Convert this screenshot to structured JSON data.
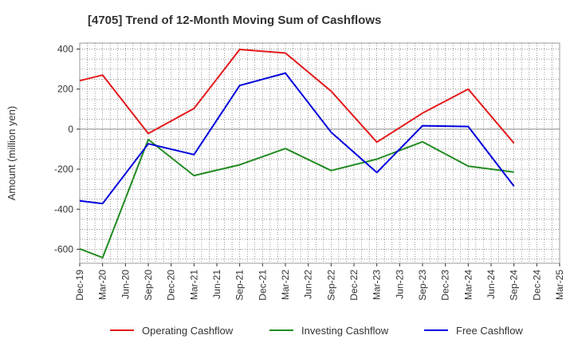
{
  "chart_data": {
    "type": "line",
    "title": "[4705]  Trend of 12-Month Moving Sum of Cashflows",
    "xlabel": "",
    "ylabel": "Amount (million yen)",
    "categories": [
      "Dec-19",
      "Mar-20",
      "Jun-20",
      "Sep-20",
      "Dec-20",
      "Mar-21",
      "Jun-21",
      "Sep-21",
      "Dec-21",
      "Mar-22",
      "Jun-22",
      "Sep-22",
      "Dec-22",
      "Mar-23",
      "Jun-23",
      "Sep-23",
      "Dec-23",
      "Mar-24",
      "Jun-24",
      "Sep-24",
      "Dec-24",
      "Mar-25"
    ],
    "ylim": [
      -670,
      430
    ],
    "yticks": [
      400,
      200,
      0,
      -200,
      -400,
      -600
    ],
    "grid": true,
    "legend_position": "bottom",
    "series": [
      {
        "name": "Operating Cashflow",
        "color": "#e31a1c",
        "points": [
          [
            "Dec-19",
            242
          ],
          [
            "Mar-20",
            270
          ],
          [
            "Sep-20",
            -22
          ],
          [
            "Mar-21",
            103
          ],
          [
            "Sep-21",
            398
          ],
          [
            "Mar-22",
            380
          ],
          [
            "Sep-22",
            190
          ],
          [
            "Mar-23",
            -65
          ],
          [
            "Sep-23",
            80
          ],
          [
            "Mar-24",
            200
          ],
          [
            "Sep-24",
            -70
          ]
        ]
      },
      {
        "name": "Investing Cashflow",
        "color": "#228b22",
        "points": [
          [
            "Dec-19",
            -598
          ],
          [
            "Mar-20",
            -642
          ],
          [
            "Sep-20",
            -52
          ],
          [
            "Mar-21",
            -232
          ],
          [
            "Sep-21",
            -178
          ],
          [
            "Mar-22",
            -97
          ],
          [
            "Sep-22",
            -207
          ],
          [
            "Mar-23",
            -150
          ],
          [
            "Sep-23",
            -63
          ],
          [
            "Mar-24",
            -185
          ],
          [
            "Sep-24",
            -215
          ]
        ]
      },
      {
        "name": "Free Cashflow",
        "color": "#0000dd",
        "points": [
          [
            "Dec-19",
            -358
          ],
          [
            "Mar-20",
            -372
          ],
          [
            "Sep-20",
            -73
          ],
          [
            "Mar-21",
            -127
          ],
          [
            "Sep-21",
            218
          ],
          [
            "Mar-22",
            280
          ],
          [
            "Sep-22",
            -15
          ],
          [
            "Mar-23",
            -217
          ],
          [
            "Sep-23",
            17
          ],
          [
            "Mar-24",
            13
          ],
          [
            "Sep-24",
            -285
          ]
        ]
      }
    ]
  }
}
